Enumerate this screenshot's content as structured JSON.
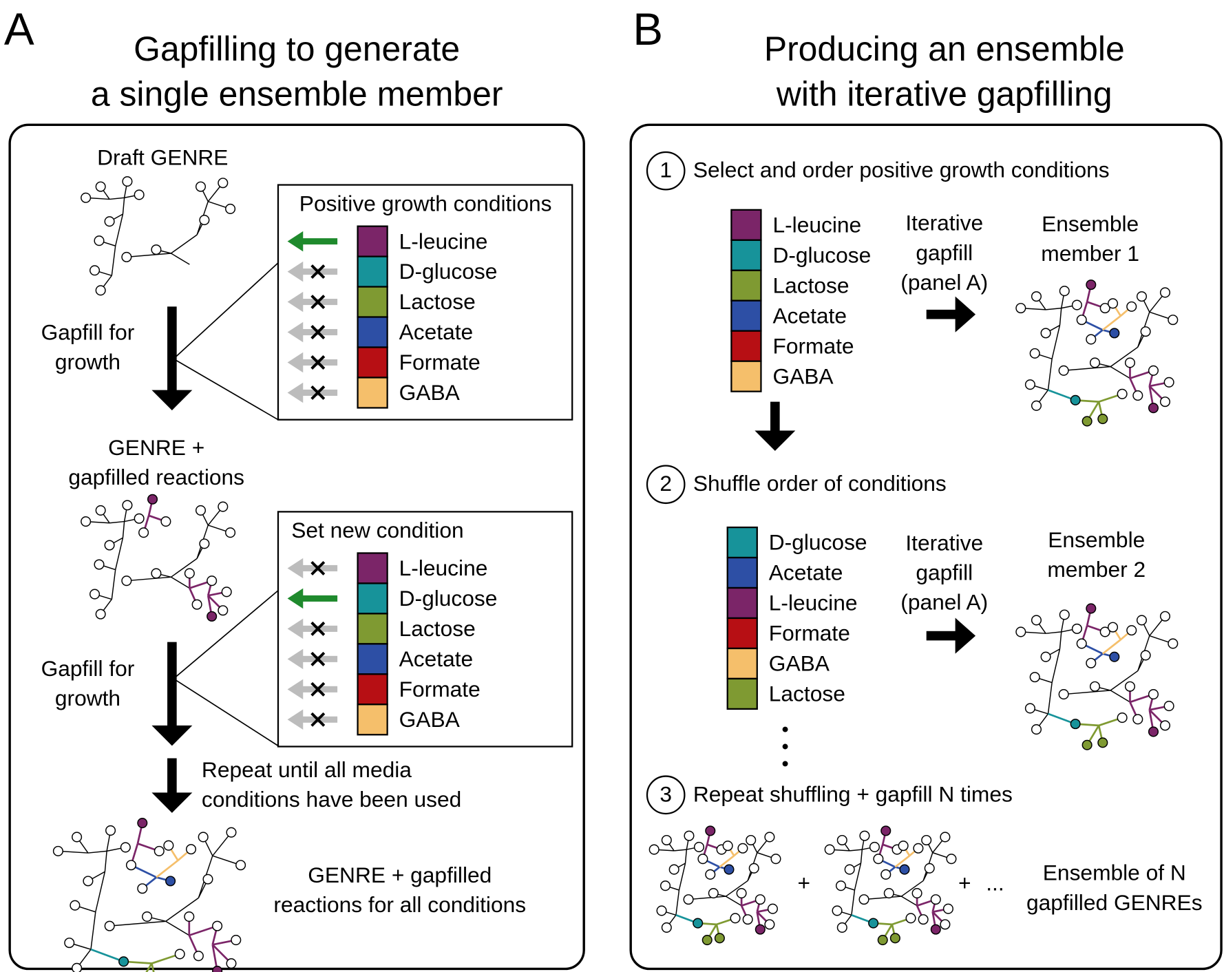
{
  "panel_a": {
    "letter": "A",
    "title": [
      "Gapfilling to generate",
      "a single ensemble member"
    ],
    "draft_label": "Draft GENRE",
    "gapfill_labels": [
      [
        "Gapfill for",
        "growth"
      ],
      [
        "Gapfill for",
        "growth"
      ]
    ],
    "intermediate_label": [
      "GENRE +",
      "gapfilled reactions"
    ],
    "condition_boxes": [
      {
        "title": "Positive growth conditions",
        "active": 0,
        "conditions": [
          {
            "name": "L-leucine",
            "color": "#7b2568"
          },
          {
            "name": "D-glucose",
            "color": "#17939a"
          },
          {
            "name": "Lactose",
            "color": "#7f9a32"
          },
          {
            "name": "Acetate",
            "color": "#2d4fa5"
          },
          {
            "name": "Formate",
            "color": "#b70f14"
          },
          {
            "name": "GABA",
            "color": "#f5bf6b"
          }
        ]
      },
      {
        "title": "Set new condition",
        "active": 1,
        "conditions": [
          {
            "name": "L-leucine",
            "color": "#7b2568"
          },
          {
            "name": "D-glucose",
            "color": "#17939a"
          },
          {
            "name": "Lactose",
            "color": "#7f9a32"
          },
          {
            "name": "Acetate",
            "color": "#2d4fa5"
          },
          {
            "name": "Formate",
            "color": "#b70f14"
          },
          {
            "name": "GABA",
            "color": "#f5bf6b"
          }
        ]
      }
    ],
    "repeat_label": [
      "Repeat until all media",
      "conditions have been used"
    ],
    "final_label": [
      "GENRE + gapfilled",
      "reactions for all conditions"
    ]
  },
  "panel_b": {
    "letter": "B",
    "title": [
      "Producing an ensemble",
      "with iterative gapfilling"
    ],
    "steps": [
      {
        "number": "1",
        "text": "Select and order positive growth conditions"
      },
      {
        "number": "2",
        "text": "Shuffle order of conditions"
      },
      {
        "number": "3",
        "text": "Repeat shuffling + gapfill N times"
      }
    ],
    "orderings": [
      {
        "conditions": [
          {
            "name": "L-leucine",
            "color": "#7b2568"
          },
          {
            "name": "D-glucose",
            "color": "#17939a"
          },
          {
            "name": "Lactose",
            "color": "#7f9a32"
          },
          {
            "name": "Acetate",
            "color": "#2d4fa5"
          },
          {
            "name": "Formate",
            "color": "#b70f14"
          },
          {
            "name": "GABA",
            "color": "#f5bf6b"
          }
        ],
        "arrow_label": [
          "Iterative",
          "gapfill",
          "(panel A)"
        ],
        "member_label": [
          "Ensemble",
          "member 1"
        ]
      },
      {
        "conditions": [
          {
            "name": "D-glucose",
            "color": "#17939a"
          },
          {
            "name": "Acetate",
            "color": "#2d4fa5"
          },
          {
            "name": "L-leucine",
            "color": "#7b2568"
          },
          {
            "name": "Formate",
            "color": "#b70f14"
          },
          {
            "name": "GABA",
            "color": "#f5bf6b"
          },
          {
            "name": "Lactose",
            "color": "#7f9a32"
          }
        ],
        "arrow_label": [
          "Iterative",
          "gapfill",
          "(panel A)"
        ],
        "member_label": [
          "Ensemble",
          "member 2"
        ]
      }
    ],
    "plus_signs": [
      "+",
      "+"
    ],
    "ellipsis": "...",
    "ensemble_label": [
      "Ensemble of N",
      "gapfilled GENREs"
    ]
  }
}
